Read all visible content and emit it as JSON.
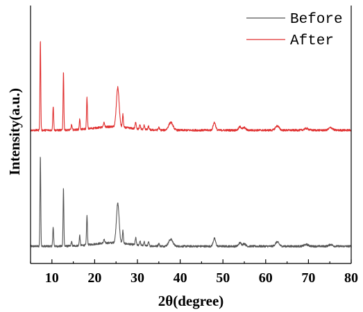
{
  "chart_data": {
    "type": "line",
    "title": "",
    "xlabel": "2θ(degree)",
    "ylabel": "Intensity(a.u.)",
    "xlim": [
      5,
      80
    ],
    "ylim": [
      0,
      300
    ],
    "x_ticks": [
      10,
      20,
      30,
      40,
      50,
      60,
      70,
      80
    ],
    "x_tick_labels": [
      "10",
      "20",
      "30",
      "40",
      "50",
      "60",
      "70",
      "80"
    ],
    "y_ticks_visible": false,
    "grid": false,
    "legend_position": "top-right",
    "series": [
      {
        "name": "Before",
        "color": "#555555",
        "baseline": 20,
        "peaks": [
          {
            "x": 7.3,
            "h": 105,
            "w": 0.13
          },
          {
            "x": 10.3,
            "h": 22,
            "w": 0.15
          },
          {
            "x": 12.7,
            "h": 68,
            "w": 0.13
          },
          {
            "x": 14.6,
            "h": 5,
            "w": 0.15
          },
          {
            "x": 16.5,
            "h": 12,
            "w": 0.15
          },
          {
            "x": 18.2,
            "h": 34,
            "w": 0.15
          },
          {
            "x": 22.2,
            "h": 4,
            "w": 0.2
          },
          {
            "x": 25.4,
            "h": 46,
            "w": 0.45
          },
          {
            "x": 26.6,
            "h": 15,
            "w": 0.16
          },
          {
            "x": 29.6,
            "h": 8,
            "w": 0.18
          },
          {
            "x": 30.6,
            "h": 5,
            "w": 0.18
          },
          {
            "x": 31.6,
            "h": 4,
            "w": 0.18
          },
          {
            "x": 32.6,
            "h": 4,
            "w": 0.18
          },
          {
            "x": 35.0,
            "h": 3,
            "w": 0.2
          },
          {
            "x": 37.8,
            "h": 8,
            "w": 0.7
          },
          {
            "x": 48.0,
            "h": 9,
            "w": 0.4
          },
          {
            "x": 54.0,
            "h": 4,
            "w": 0.45
          },
          {
            "x": 55.0,
            "h": 3,
            "w": 0.45
          },
          {
            "x": 62.7,
            "h": 5,
            "w": 0.6
          },
          {
            "x": 69.5,
            "h": 2,
            "w": 0.7
          },
          {
            "x": 75.2,
            "h": 2,
            "w": 0.6
          }
        ]
      },
      {
        "name": "After",
        "color": "#e03030",
        "baseline": 155,
        "peaks": [
          {
            "x": 7.3,
            "h": 105,
            "w": 0.13
          },
          {
            "x": 10.3,
            "h": 28,
            "w": 0.15
          },
          {
            "x": 12.7,
            "h": 68,
            "w": 0.13
          },
          {
            "x": 14.6,
            "h": 6,
            "w": 0.15
          },
          {
            "x": 16.5,
            "h": 12,
            "w": 0.15
          },
          {
            "x": 18.2,
            "h": 36,
            "w": 0.15
          },
          {
            "x": 22.2,
            "h": 5,
            "w": 0.2
          },
          {
            "x": 25.4,
            "h": 46,
            "w": 0.45
          },
          {
            "x": 26.6,
            "h": 15,
            "w": 0.16
          },
          {
            "x": 29.6,
            "h": 8,
            "w": 0.18
          },
          {
            "x": 30.6,
            "h": 5,
            "w": 0.18
          },
          {
            "x": 31.6,
            "h": 5,
            "w": 0.18
          },
          {
            "x": 32.6,
            "h": 4,
            "w": 0.18
          },
          {
            "x": 35.0,
            "h": 3,
            "w": 0.2
          },
          {
            "x": 37.8,
            "h": 9,
            "w": 0.7
          },
          {
            "x": 48.0,
            "h": 9,
            "w": 0.4
          },
          {
            "x": 54.0,
            "h": 4,
            "w": 0.45
          },
          {
            "x": 55.0,
            "h": 3,
            "w": 0.45
          },
          {
            "x": 62.7,
            "h": 5,
            "w": 0.6
          },
          {
            "x": 69.5,
            "h": 2,
            "w": 0.7
          },
          {
            "x": 75.2,
            "h": 3,
            "w": 0.6
          }
        ]
      }
    ]
  }
}
